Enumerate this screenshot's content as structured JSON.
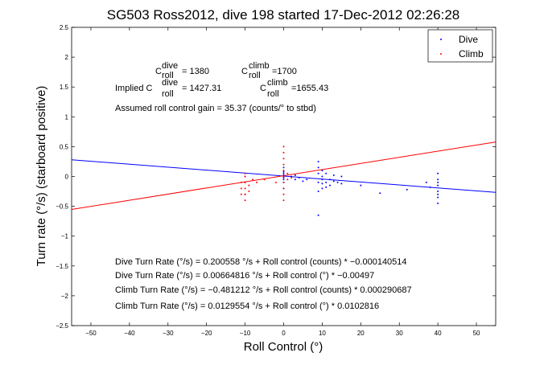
{
  "chart_data": {
    "type": "scatter",
    "title": "SG503 Ross2012, dive 198 started 17-Dec-2012 02:26:28",
    "xlabel": "Roll Control (°)",
    "ylabel": "Turn rate (°/s) (starboard positive)",
    "xlim": [
      -55,
      55
    ],
    "ylim": [
      -2.5,
      2.5
    ],
    "xticks": [
      "−50",
      "−40",
      "−30",
      "−20",
      "−10",
      "0",
      "10",
      "20",
      "30",
      "40",
      "50"
    ],
    "yticks": [
      "−2.5",
      "−2",
      "−1.5",
      "−1",
      "−0.5",
      "0",
      "0.5",
      "1",
      "1.5",
      "2",
      "2.5"
    ],
    "grid": false,
    "legend": {
      "position": "top-right",
      "entries": [
        "Dive",
        "Climb"
      ]
    },
    "colors": {
      "Dive": "#0000ff",
      "Climb": "#ff0000"
    },
    "series": [
      {
        "name": "Dive",
        "points": [
          [
            0,
            0.02
          ],
          [
            0,
            -0.05
          ],
          [
            0,
            0.08
          ],
          [
            0,
            -0.1
          ],
          [
            0,
            0.15
          ],
          [
            0,
            -0.2
          ],
          [
            0,
            0.05
          ],
          [
            0,
            -0.02
          ],
          [
            2,
            0.0
          ],
          [
            3,
            -0.05
          ],
          [
            3,
            0.02
          ],
          [
            4,
            -0.02
          ],
          [
            5,
            -0.08
          ],
          [
            6,
            -0.05
          ],
          [
            9,
            0.25
          ],
          [
            9,
            0.15
          ],
          [
            9,
            0.05
          ],
          [
            9,
            -0.1
          ],
          [
            9,
            -0.25
          ],
          [
            9,
            -0.65
          ],
          [
            10,
            -0.05
          ],
          [
            10,
            -0.12
          ],
          [
            10,
            -0.2
          ],
          [
            10,
            0.1
          ],
          [
            10,
            0.0
          ],
          [
            11,
            -0.1
          ],
          [
            11,
            0.05
          ],
          [
            11,
            -0.18
          ],
          [
            12,
            -0.05
          ],
          [
            12,
            -0.15
          ],
          [
            13,
            0.02
          ],
          [
            13,
            -0.08
          ],
          [
            14,
            -0.1
          ],
          [
            15,
            0.0
          ],
          [
            15,
            -0.12
          ],
          [
            20,
            -0.15
          ],
          [
            25,
            -0.28
          ],
          [
            32,
            -0.22
          ],
          [
            37,
            -0.1
          ],
          [
            38,
            -0.18
          ],
          [
            40,
            0.05
          ],
          [
            40,
            -0.05
          ],
          [
            40,
            -0.15
          ],
          [
            40,
            -0.25
          ],
          [
            40,
            -0.35
          ],
          [
            40,
            -0.45
          ],
          [
            40,
            -0.1
          ],
          [
            40,
            -0.3
          ],
          [
            -10,
            -0.1
          ],
          [
            -10,
            -0.3
          ],
          [
            -10,
            0.0
          ]
        ]
      },
      {
        "name": "Climb",
        "points": [
          [
            -11,
            -0.2
          ],
          [
            -11,
            -0.1
          ],
          [
            -11,
            -0.3
          ],
          [
            -10,
            0.0
          ],
          [
            -10,
            -0.1
          ],
          [
            -10,
            -0.2
          ],
          [
            -10,
            -0.3
          ],
          [
            -10,
            -0.4
          ],
          [
            -10,
            0.05
          ],
          [
            -9,
            -0.15
          ],
          [
            -9,
            -0.25
          ],
          [
            -8,
            -0.05
          ],
          [
            -7,
            -0.1
          ],
          [
            -5,
            -0.05
          ],
          [
            -2,
            -0.1
          ],
          [
            0,
            0.5
          ],
          [
            0,
            0.4
          ],
          [
            0,
            0.3
          ],
          [
            0,
            0.2
          ],
          [
            0,
            0.1
          ],
          [
            0,
            0.0
          ],
          [
            0,
            -0.1
          ],
          [
            0,
            -0.2
          ],
          [
            0,
            -0.3
          ],
          [
            0,
            -0.4
          ],
          [
            1,
            0.05
          ],
          [
            1,
            -0.05
          ],
          [
            2,
            -0.02
          ]
        ]
      }
    ],
    "fits": [
      {
        "name": "Dive",
        "intercept": 0.00664816,
        "slope": -0.00497,
        "color": "#0000ff"
      },
      {
        "name": "Climb",
        "intercept": 0.0129554,
        "slope": 0.0102816,
        "color": "#ff0000"
      }
    ],
    "annotations": {
      "c_dive_lead": "C",
      "c_dive_sup": "dive",
      "c_dive_sub": "roll",
      "c_dive_val": "= 1380",
      "c_climb_lead": "C",
      "c_climb_sup": "climb",
      "c_climb_sub": "roll",
      "c_climb_val": "=1700",
      "implied_lead": "Implied C",
      "implied_dive_sup": "dive",
      "implied_dive_sub": "roll",
      "implied_dive_val": "= 1427.31",
      "implied_climb_lead": "C",
      "implied_climb_sup": "climb",
      "implied_climb_sub": "roll",
      "implied_climb_val": "=1655.43",
      "assumed_gain": "Assumed roll control gain = 35.37 (counts/° to stbd)",
      "eq1": "Dive Turn Rate (°/s) = 0.200558 °/s + Roll control (counts) * −0.000140514",
      "eq2": "Dive Turn Rate (°/s) = 0.00664816 °/s + Roll control (°) * −0.00497",
      "eq3": "Climb Turn Rate (°/s) = −0.481212 °/s + Roll control (counts) * 0.000290687",
      "eq4": "Climb Turn Rate (°/s) = 0.0129554 °/s + Roll control (°) * 0.0102816"
    }
  }
}
